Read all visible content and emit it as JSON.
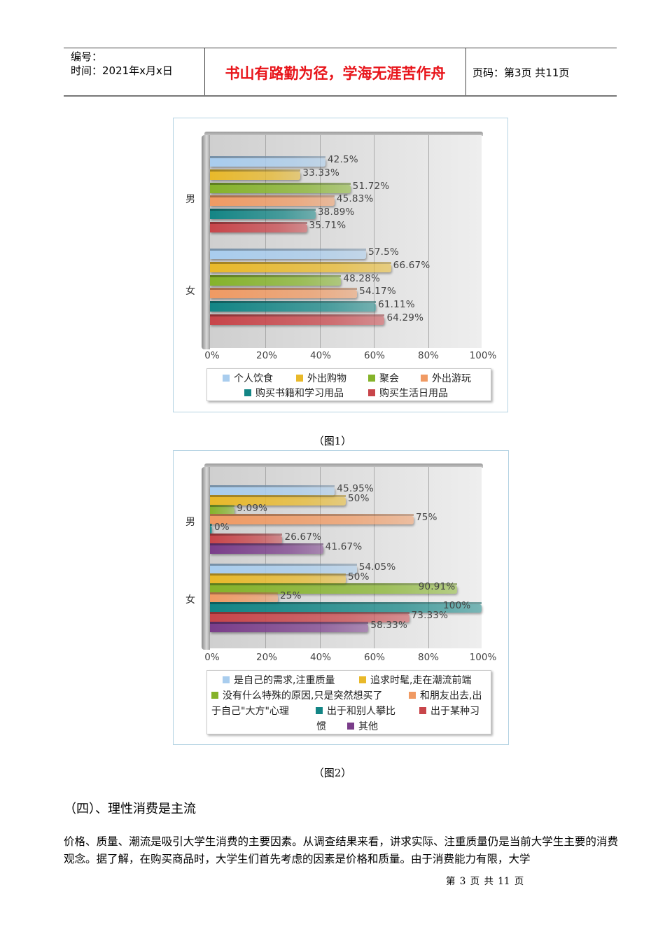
{
  "header": {
    "number_label": "编号：",
    "time_label": "时间：2021年x月x日",
    "motto": "书山有路勤为径，学海无涯苦作舟",
    "page_info": "页码：第3页  共11页"
  },
  "figure1": {
    "caption": "（图1）",
    "categories": [
      "男",
      "女"
    ],
    "ticks": [
      "0%",
      "20%",
      "40%",
      "60%",
      "80%",
      "100%"
    ],
    "legend": [
      "个人饮食",
      "外出购物",
      "聚会",
      "外出游玩",
      "购买书籍和学习用品",
      "购买生活日用品"
    ],
    "colors": [
      "#a9cdee",
      "#e9b92a",
      "#85b32a",
      "#f09a63",
      "#138585",
      "#c8454a"
    ],
    "labels_male": [
      "42.5%",
      "33.33%",
      "51.72%",
      "45.83%",
      "38.89%",
      "35.71%"
    ],
    "labels_female": [
      "57.5%",
      "66.67%",
      "48.28%",
      "54.17%",
      "61.11%",
      "64.29%"
    ]
  },
  "figure2": {
    "caption": "（图2）",
    "categories": [
      "男",
      "女"
    ],
    "ticks": [
      "0%",
      "20%",
      "40%",
      "60%",
      "80%",
      "100%"
    ],
    "legend_rows": [
      "是自己的需求,注重质量",
      "追求时髦,走在潮流前端",
      "没有什么特殊的原因,只是突然想买了",
      "和朋友出去,出",
      "于自己\"大方\"心理",
      "出于和别人攀比",
      "出于某种习",
      "惯",
      "其他"
    ],
    "colors": [
      "#a9cdee",
      "#e9b92a",
      "#85b32a",
      "#f09a63",
      "#138585",
      "#c8454a",
      "#7a3d8a"
    ],
    "labels_male": [
      "45.95%",
      "50%",
      "9.09%",
      "75%",
      "0%",
      "26.67%",
      "41.67%"
    ],
    "labels_female": [
      "54.05%",
      "50%",
      "90.91%",
      "25%",
      "100%",
      "73.33%",
      "58.33%"
    ]
  },
  "section": {
    "title": "（四）、理性消费是主流",
    "paragraph": "价格、质量、潮流是吸引大学生消费的主要因素。从调查结果来看，讲求实际、注重质量仍是当前大学生主要的消费观念。据了解，在购买商品时，大学生们首先考虑的因素是价格和质量。由于消费能力有限，大学"
  },
  "footer": {
    "page": "第 3 页 共 11 页"
  },
  "chart_data": [
    {
      "type": "bar",
      "orientation": "horizontal",
      "title": "",
      "caption": "（图1）",
      "categories": [
        "男",
        "女"
      ],
      "xlabel": "",
      "ylabel": "",
      "xlim": [
        0,
        100
      ],
      "x_ticks": [
        "0%",
        "20%",
        "40%",
        "60%",
        "80%",
        "100%"
      ],
      "grid": true,
      "legend_position": "bottom",
      "series": [
        {
          "name": "个人饮食",
          "values": [
            42.5,
            57.5
          ]
        },
        {
          "name": "外出购物",
          "values": [
            33.33,
            66.67
          ]
        },
        {
          "name": "聚会",
          "values": [
            51.72,
            48.28
          ]
        },
        {
          "name": "外出游玩",
          "values": [
            45.83,
            54.17
          ]
        },
        {
          "name": "购买书籍和学习用品",
          "values": [
            38.89,
            61.11
          ]
        },
        {
          "name": "购买生活日用品",
          "values": [
            35.71,
            64.29
          ]
        }
      ]
    },
    {
      "type": "bar",
      "orientation": "horizontal",
      "title": "",
      "caption": "（图2）",
      "categories": [
        "男",
        "女"
      ],
      "xlabel": "",
      "ylabel": "",
      "xlim": [
        0,
        100
      ],
      "x_ticks": [
        "0%",
        "20%",
        "40%",
        "60%",
        "80%",
        "100%"
      ],
      "grid": true,
      "legend_position": "bottom",
      "series": [
        {
          "name": "是自己的需求,注重质量",
          "values": [
            45.95,
            54.05
          ]
        },
        {
          "name": "追求时髦,走在潮流前端",
          "values": [
            50,
            50
          ]
        },
        {
          "name": "没有什么特殊的原因,只是突然想买了",
          "values": [
            9.09,
            90.91
          ]
        },
        {
          "name": "和朋友出去,出于自己\"大方\"心理",
          "values": [
            75,
            25
          ]
        },
        {
          "name": "出于和别人攀比",
          "values": [
            0,
            100
          ]
        },
        {
          "name": "出于某种习惯",
          "values": [
            26.67,
            73.33
          ]
        },
        {
          "name": "其他",
          "values": [
            41.67,
            58.33
          ]
        }
      ]
    }
  ]
}
